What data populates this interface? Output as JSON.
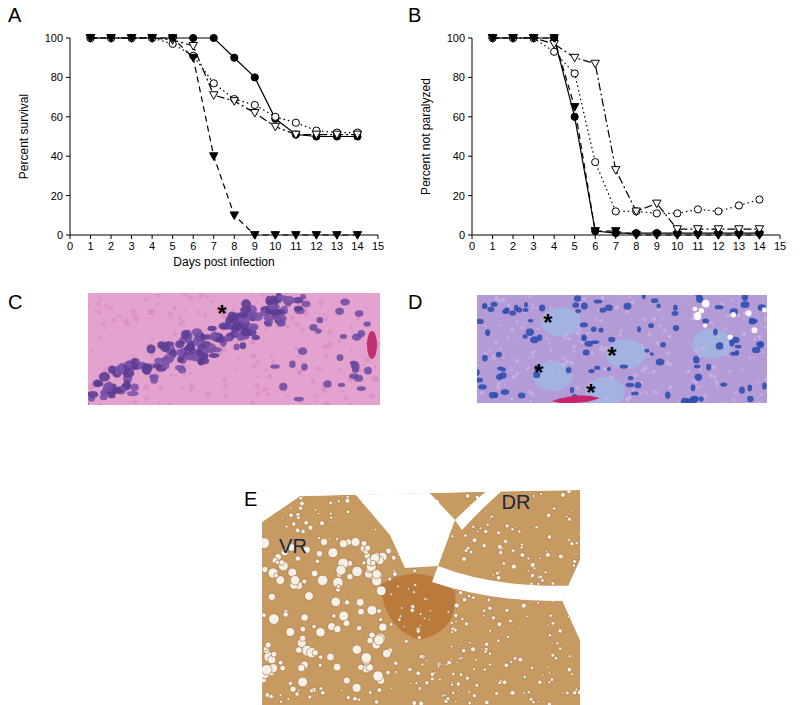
{
  "chart_data": [
    {
      "type": "line",
      "title": "A",
      "x_label": "Days post infection",
      "y_label": "Percent survival",
      "x": [
        1,
        2,
        3,
        4,
        5,
        6,
        7,
        8,
        9,
        10,
        11,
        12,
        13,
        14
      ],
      "xlim": [
        0,
        15
      ],
      "xticks": [
        0,
        1,
        2,
        3,
        4,
        5,
        6,
        7,
        8,
        9,
        10,
        11,
        12,
        13,
        14,
        15
      ],
      "ylim": [
        0,
        100
      ],
      "yticks": [
        0,
        20,
        40,
        60,
        80,
        100
      ],
      "series": [
        {
          "color": "#000000",
          "marker": "circle",
          "line_style": "solid",
          "values": [
            100,
            100,
            100,
            100,
            100,
            100,
            100,
            90,
            80,
            59,
            51,
            50,
            50,
            50
          ]
        },
        {
          "color": "#000000",
          "marker": "circle-open",
          "line_style": "dotted",
          "values": [
            100,
            100,
            100,
            100,
            97,
            91,
            77,
            69,
            66,
            60,
            57,
            53,
            52,
            52
          ]
        },
        {
          "color": "#000000",
          "marker": "triangle-down-open",
          "line_style": "dashdot",
          "values": [
            100,
            100,
            100,
            100,
            99,
            96,
            71,
            68,
            62,
            55,
            51,
            51,
            51,
            51
          ]
        },
        {
          "color": "#000000",
          "marker": "triangle-down",
          "line_style": "dashed",
          "values": [
            100,
            100,
            100,
            100,
            100,
            90,
            40,
            10,
            0,
            0,
            0,
            0,
            0,
            0
          ]
        }
      ]
    },
    {
      "type": "line",
      "title": "B",
      "y_label": "Percent not paralyzed",
      "x": [
        1,
        2,
        3,
        4,
        5,
        6,
        7,
        8,
        9,
        10,
        11,
        12,
        13,
        14
      ],
      "xlim": [
        0,
        15
      ],
      "xticks": [
        0,
        1,
        2,
        3,
        4,
        5,
        6,
        7,
        8,
        9,
        10,
        11,
        12,
        13,
        14,
        15
      ],
      "ylim": [
        0,
        100
      ],
      "yticks": [
        0,
        20,
        40,
        60,
        80,
        100
      ],
      "series": [
        {
          "color": "#000000",
          "marker": "circle",
          "line_style": "solid",
          "values": [
            100,
            100,
            100,
            100,
            60,
            2,
            1,
            1,
            1,
            1,
            1,
            1,
            1,
            1
          ]
        },
        {
          "color": "#000000",
          "marker": "circle-open",
          "line_style": "dotted",
          "values": [
            100,
            100,
            100,
            93,
            82,
            37,
            12,
            12,
            11,
            11,
            13,
            12,
            15,
            18
          ]
        },
        {
          "color": "#000000",
          "marker": "triangle-down-open",
          "line_style": "dashdot",
          "values": [
            100,
            100,
            100,
            97,
            90,
            87,
            33,
            12,
            16,
            3,
            3,
            3,
            3,
            3
          ]
        },
        {
          "color": "#000000",
          "marker": "triangle-down",
          "line_style": "dashed",
          "values": [
            100,
            100,
            100,
            100,
            65,
            2,
            2,
            0,
            0,
            0,
            0,
            0,
            0,
            0
          ]
        }
      ]
    }
  ],
  "panels": [
    {
      "label": "C",
      "annotations": [
        "*"
      ]
    },
    {
      "label": "D",
      "annotations": [
        "*",
        "*",
        "*",
        "*"
      ]
    },
    {
      "label": "E",
      "annotations": [
        "VR",
        "DR"
      ]
    }
  ]
}
